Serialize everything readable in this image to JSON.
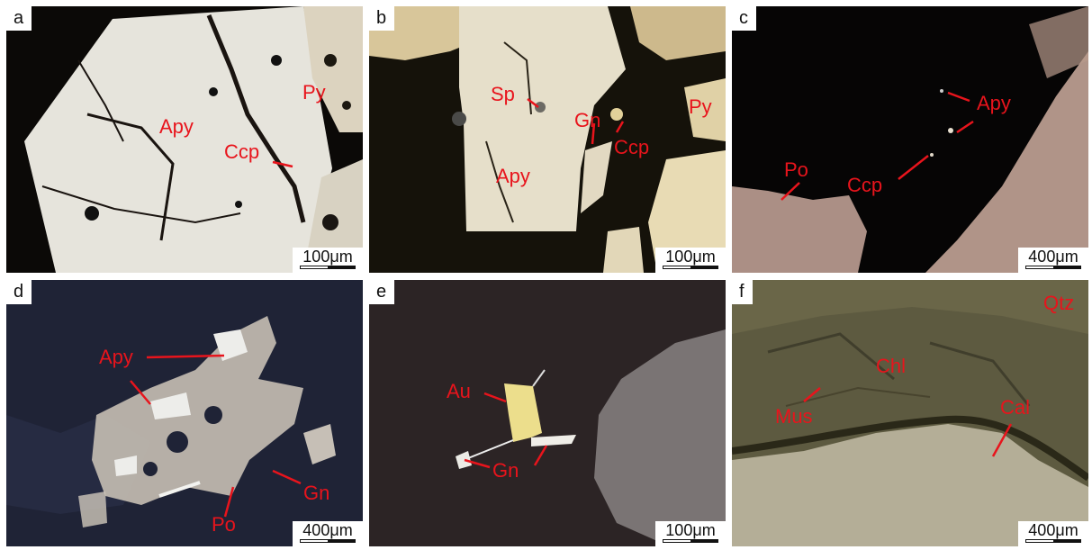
{
  "panels": [
    {
      "id": "a",
      "letter": "a",
      "scale": "100μm",
      "minerals": [
        "Py",
        "Apy",
        "Ccp"
      ]
    },
    {
      "id": "b",
      "letter": "b",
      "scale": "100μm",
      "minerals": [
        "Sp",
        "Gn",
        "Ccp",
        "Py",
        "Apy"
      ]
    },
    {
      "id": "c",
      "letter": "c",
      "scale": "400μm",
      "minerals": [
        "Apy",
        "Po",
        "Ccp"
      ]
    },
    {
      "id": "d",
      "letter": "d",
      "scale": "400μm",
      "minerals": [
        "Apy",
        "Gn",
        "Po"
      ]
    },
    {
      "id": "e",
      "letter": "e",
      "scale": "100μm",
      "minerals": [
        "Au",
        "Gn"
      ]
    },
    {
      "id": "f",
      "letter": "f",
      "scale": "400μm",
      "minerals": [
        "Qtz",
        "Chl",
        "Mus",
        "Cal"
      ]
    }
  ],
  "colors": {
    "label": "#e8141c"
  }
}
